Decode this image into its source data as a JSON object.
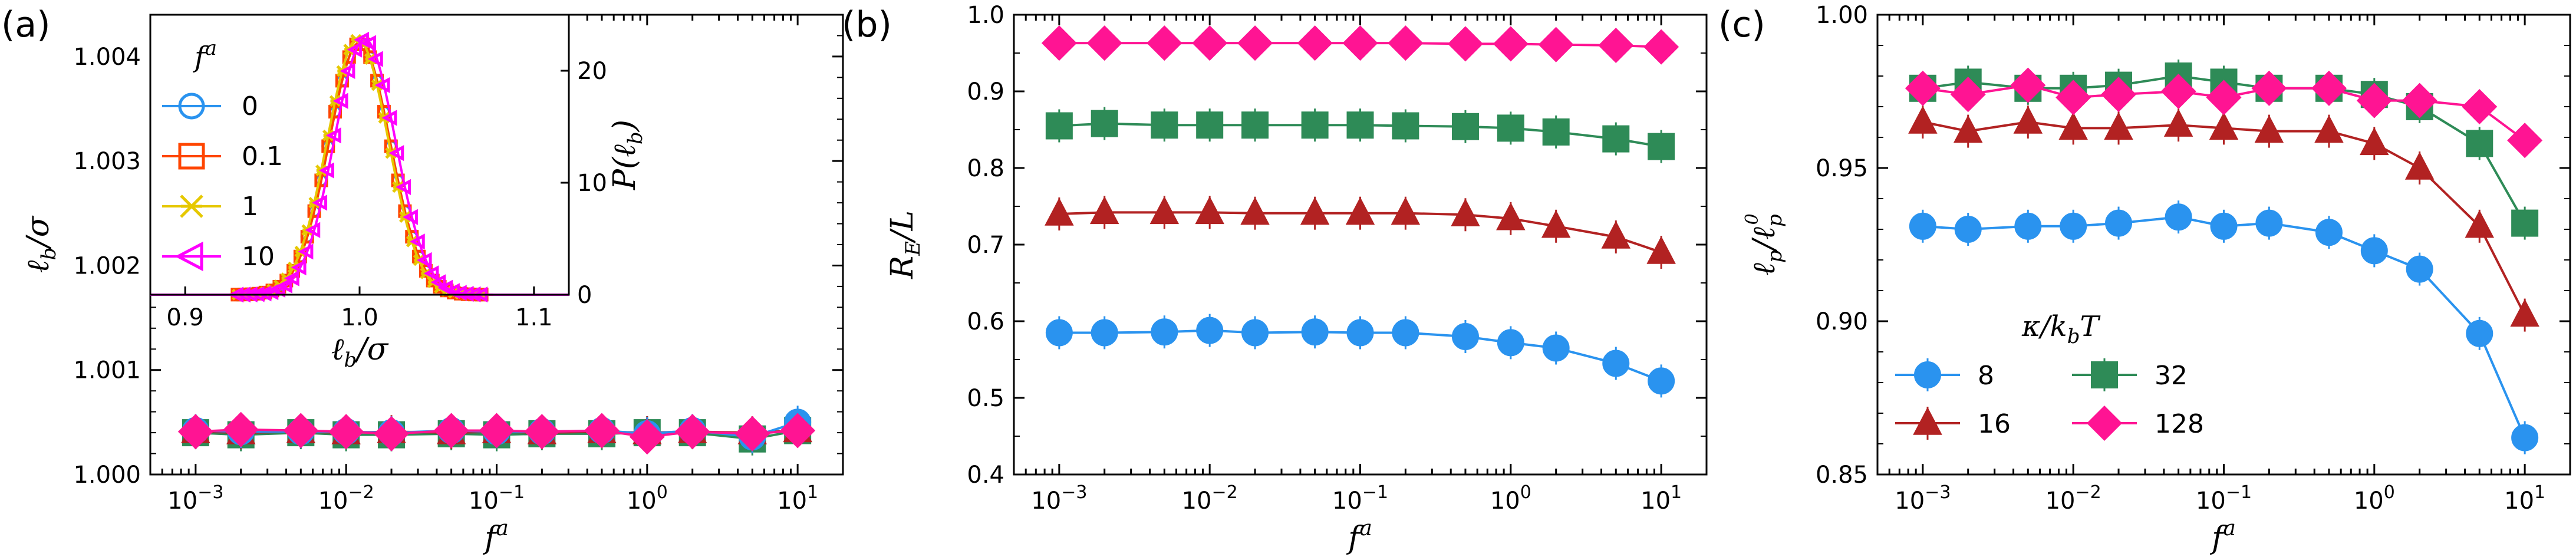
{
  "chart_data": [
    {
      "type": "line",
      "panel_label": "(a)",
      "xscale": "log",
      "xlim": [
        0.0005,
        20
      ],
      "ylim": [
        1.0,
        1.0044
      ],
      "xlabel": "f^a",
      "ylabel": "ℓ_b/σ",
      "x_ticks": [
        {
          "v": 0.001,
          "b": "10",
          "e": "−3"
        },
        {
          "v": 0.01,
          "b": "10",
          "e": "−2"
        },
        {
          "v": 0.1,
          "b": "10",
          "e": "−1"
        },
        {
          "v": 1,
          "b": "10",
          "e": "0"
        },
        {
          "v": 10,
          "b": "10",
          "e": "1"
        }
      ],
      "y_ticks": [
        "1.000",
        "1.001",
        "1.002",
        "1.003",
        "1.004"
      ],
      "x": [
        0.001,
        0.002,
        0.005,
        0.01,
        0.02,
        0.05,
        0.1,
        0.2,
        0.5,
        1,
        2,
        5,
        10
      ],
      "series": [
        {
          "name": "8",
          "color": "#2a93ef",
          "marker": "circle",
          "values": [
            1.00042,
            1.00041,
            1.00041,
            1.00041,
            1.0004,
            1.00042,
            1.00041,
            1.00041,
            1.00042,
            1.00039,
            1.00042,
            1.00036,
            1.0005
          ]
        },
        {
          "name": "16",
          "color": "#b22222",
          "marker": "triangle",
          "values": [
            1.00041,
            1.0004,
            1.00041,
            1.0004,
            1.00041,
            1.0004,
            1.00041,
            1.0004,
            1.00041,
            1.0004,
            1.00041,
            1.0004,
            1.00042
          ]
        },
        {
          "name": "32",
          "color": "#2e8b57",
          "marker": "square",
          "values": [
            1.0004,
            1.00038,
            1.0004,
            1.00038,
            1.00038,
            1.00039,
            1.00038,
            1.00039,
            1.00039,
            1.0004,
            1.0004,
            1.00034,
            1.00042
          ]
        },
        {
          "name": "128",
          "color": "#ff1493",
          "marker": "diamond",
          "values": [
            1.00041,
            1.00043,
            1.00042,
            1.00041,
            1.00039,
            1.00042,
            1.00042,
            1.00041,
            1.00042,
            1.00036,
            1.00041,
            1.00039,
            1.00042
          ]
        }
      ],
      "inset": {
        "type": "line",
        "xlim": [
          0.88,
          1.12
        ],
        "ylim": [
          0,
          25
        ],
        "xlabel": "ℓ_b/σ",
        "ylabel": "P(ℓ_b)",
        "x_ticks": [
          "0.9",
          "1.0",
          "1.1"
        ],
        "y_ticks": [
          "0",
          "10",
          "20"
        ],
        "legend_title": "f^a",
        "series": [
          {
            "name": "0",
            "color": "#2a93ef",
            "marker": "circle",
            "mean": 1.0,
            "sd": 0.0175,
            "peak": 22.5
          },
          {
            "name": "0.1",
            "color": "#ff4500",
            "marker": "square",
            "mean": 1.0,
            "sd": 0.0175,
            "peak": 22.5
          },
          {
            "name": "1",
            "color": "#e6c800",
            "marker": "cross",
            "mean": 0.999,
            "sd": 0.0175,
            "peak": 22.8
          },
          {
            "name": "10",
            "color": "#ff00ff",
            "marker": "triangle-left",
            "mean": 1.003,
            "sd": 0.0175,
            "peak": 22.8
          }
        ]
      }
    },
    {
      "type": "line",
      "panel_label": "(b)",
      "xscale": "log",
      "xlim": [
        0.0005,
        20
      ],
      "ylim": [
        0.4,
        1.0
      ],
      "xlabel": "f^a",
      "ylabel": "R_E/L",
      "x_ticks": [
        {
          "v": 0.001,
          "b": "10",
          "e": "−3"
        },
        {
          "v": 0.01,
          "b": "10",
          "e": "−2"
        },
        {
          "v": 0.1,
          "b": "10",
          "e": "−1"
        },
        {
          "v": 1,
          "b": "10",
          "e": "0"
        },
        {
          "v": 10,
          "b": "10",
          "e": "1"
        }
      ],
      "y_ticks": [
        "0.4",
        "0.5",
        "0.6",
        "0.7",
        "0.8",
        "0.9",
        "1.0"
      ],
      "x": [
        0.001,
        0.002,
        0.005,
        0.01,
        0.02,
        0.05,
        0.1,
        0.2,
        0.5,
        1,
        2,
        5,
        10
      ],
      "series": [
        {
          "name": "8",
          "color": "#2a93ef",
          "marker": "circle",
          "values": [
            0.585,
            0.585,
            0.586,
            0.588,
            0.585,
            0.586,
            0.585,
            0.585,
            0.58,
            0.572,
            0.565,
            0.545,
            0.522
          ]
        },
        {
          "name": "16",
          "color": "#b22222",
          "marker": "triangle",
          "values": [
            0.74,
            0.742,
            0.742,
            0.742,
            0.741,
            0.741,
            0.741,
            0.741,
            0.739,
            0.734,
            0.724,
            0.71,
            0.69
          ]
        },
        {
          "name": "32",
          "color": "#2e8b57",
          "marker": "square",
          "values": [
            0.855,
            0.858,
            0.856,
            0.856,
            0.856,
            0.856,
            0.856,
            0.855,
            0.854,
            0.852,
            0.847,
            0.838,
            0.828
          ]
        },
        {
          "name": "128",
          "color": "#ff1493",
          "marker": "diamond",
          "values": [
            0.963,
            0.963,
            0.963,
            0.963,
            0.963,
            0.963,
            0.963,
            0.963,
            0.962,
            0.962,
            0.961,
            0.96,
            0.958
          ]
        }
      ]
    },
    {
      "type": "line",
      "panel_label": "(c)",
      "xscale": "log",
      "xlim": [
        0.0005,
        20
      ],
      "ylim": [
        0.85,
        1.0
      ],
      "xlabel": "f^a",
      "ylabel": "ℓ_p/ℓ_p^0",
      "x_ticks": [
        {
          "v": 0.001,
          "b": "10",
          "e": "−3"
        },
        {
          "v": 0.01,
          "b": "10",
          "e": "−2"
        },
        {
          "v": 0.1,
          "b": "10",
          "e": "−1"
        },
        {
          "v": 1,
          "b": "10",
          "e": "0"
        },
        {
          "v": 10,
          "b": "10",
          "e": "1"
        }
      ],
      "y_ticks": [
        "0.85",
        "0.90",
        "0.95",
        "1.00"
      ],
      "legend_title": "κ/k_bT",
      "x": [
        0.001,
        0.002,
        0.005,
        0.01,
        0.02,
        0.05,
        0.1,
        0.2,
        0.5,
        1,
        2,
        5,
        10
      ],
      "series": [
        {
          "name": "8",
          "color": "#2a93ef",
          "marker": "circle",
          "values": [
            0.931,
            0.93,
            0.931,
            0.931,
            0.932,
            0.934,
            0.931,
            0.932,
            0.929,
            0.923,
            0.917,
            0.896,
            0.862
          ]
        },
        {
          "name": "16",
          "color": "#b22222",
          "marker": "triangle",
          "values": [
            0.965,
            0.962,
            0.965,
            0.963,
            0.963,
            0.964,
            0.963,
            0.962,
            0.962,
            0.958,
            0.95,
            0.931,
            0.902
          ]
        },
        {
          "name": "32",
          "color": "#2e8b57",
          "marker": "square",
          "values": [
            0.976,
            0.978,
            0.976,
            0.976,
            0.977,
            0.98,
            0.978,
            0.976,
            0.976,
            0.974,
            0.97,
            0.958,
            0.932
          ]
        },
        {
          "name": "128",
          "color": "#ff1493",
          "marker": "diamond",
          "values": [
            0.976,
            0.974,
            0.977,
            0.973,
            0.974,
            0.975,
            0.973,
            0.976,
            0.976,
            0.972,
            0.972,
            0.97,
            0.959
          ]
        }
      ]
    }
  ]
}
